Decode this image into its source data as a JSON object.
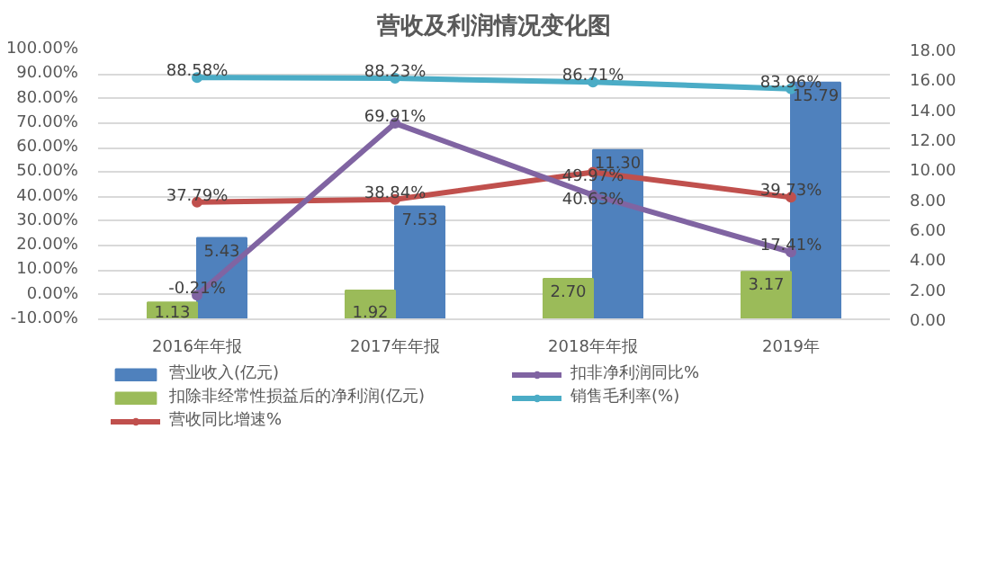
{
  "chart_data": {
    "type": "bar",
    "title": "营收及利润情况变化图",
    "categories": [
      "2016年年报",
      "2017年年报",
      "2018年年报",
      "2019年"
    ],
    "series": [
      {
        "name": "营业收入(亿元)",
        "axis": "y2",
        "color": "#4f81bd",
        "values": [
          5.43,
          7.53,
          11.3,
          15.79
        ],
        "value_labels": [
          "5.43",
          "7.53",
          "11.30",
          "15.79"
        ]
      },
      {
        "name": "扣除非经常性损益后的净利润(亿元)",
        "axis": "y2",
        "color": "#9bbb59",
        "values": [
          1.13,
          1.92,
          2.7,
          3.17
        ],
        "value_labels": [
          "1.13",
          "1.92",
          "2.70",
          "3.17"
        ]
      },
      {
        "name": "营收同比增速%",
        "type": "line",
        "color": "#c0504d",
        "values": [
          37.79,
          38.84,
          49.97,
          39.73
        ],
        "value_labels": [
          "37.79%",
          "38.84%",
          "49.97%",
          "39.73%"
        ]
      },
      {
        "name": "扣非净利润同比%",
        "type": "line",
        "color": "#8064a2",
        "values": [
          -0.21,
          69.91,
          40.63,
          17.41
        ],
        "value_labels": [
          "-0.21%",
          "69.91%",
          "40.63%",
          "17.41%"
        ]
      },
      {
        "name": "销售毛利率(%)",
        "type": "line",
        "color": "#4bacc6",
        "values": [
          88.58,
          88.23,
          86.71,
          83.96
        ],
        "value_labels": [
          "88.58%",
          "88.23%",
          "86.71%",
          "83.96%"
        ]
      }
    ],
    "ylim": [
      -10,
      100
    ],
    "yticks": [
      {
        "value": -10,
        "label": "-10.00%"
      },
      {
        "value": 0,
        "label": "0.00%"
      },
      {
        "value": 10,
        "label": "10.00%"
      },
      {
        "value": 20,
        "label": "20.00%"
      },
      {
        "value": 30,
        "label": "30.00%"
      },
      {
        "value": 40,
        "label": "40.00%"
      },
      {
        "value": 50,
        "label": "50.00%"
      },
      {
        "value": 60,
        "label": "60.00%"
      },
      {
        "value": 70,
        "label": "70.00%"
      },
      {
        "value": 80,
        "label": "80.00%"
      },
      {
        "value": 90,
        "label": "90.00%"
      },
      {
        "value": 100,
        "label": "100.00%"
      }
    ],
    "y2lim": [
      0,
      18
    ],
    "y2ticks": [
      {
        "value": 0,
        "label": "0.00"
      },
      {
        "value": 2,
        "label": "2.00"
      },
      {
        "value": 4,
        "label": "4.00"
      },
      {
        "value": 6,
        "label": "6.00"
      },
      {
        "value": 8,
        "label": "8.00"
      },
      {
        "value": 10,
        "label": "10.00"
      },
      {
        "value": 12,
        "label": "12.00"
      },
      {
        "value": 14,
        "label": "14.00"
      },
      {
        "value": 16,
        "label": "16.00"
      },
      {
        "value": 18,
        "label": "18.00"
      }
    ],
    "grid": "y",
    "legend": "bottom",
    "marker": "circle",
    "line_style": "solid"
  }
}
